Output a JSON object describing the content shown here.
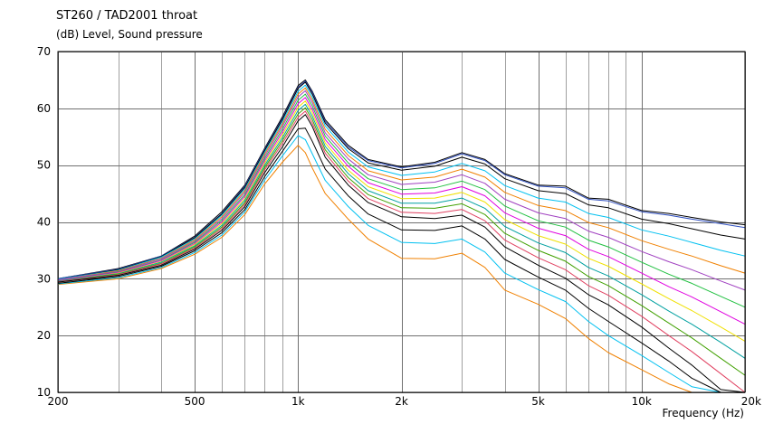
{
  "chart_data": {
    "type": "line",
    "title": "ST260 / TAD2001 throat",
    "ylabel": "(dB)  Level, Sound pressure",
    "xlabel": "Frequency  (Hz)",
    "x_scale": "log",
    "xlim": [
      200,
      20000
    ],
    "ylim": [
      10,
      70
    ],
    "grid": true,
    "x_ticks": [
      200,
      500,
      1000,
      2000,
      5000,
      10000,
      20000
    ],
    "x_tick_labels": [
      "200",
      "500",
      "1k",
      "2k",
      "5k",
      "10k",
      "20k"
    ],
    "y_ticks": [
      10,
      20,
      30,
      40,
      50,
      60,
      70
    ],
    "y_tick_labels": [
      "10",
      "20",
      "30",
      "40",
      "50",
      "60",
      "70"
    ],
    "x": [
      200,
      300,
      400,
      500,
      600,
      700,
      800,
      900,
      1000,
      1050,
      1100,
      1200,
      1400,
      1600,
      2000,
      2500,
      3000,
      3500,
      4000,
      5000,
      6000,
      7000,
      8000,
      10000,
      12000,
      14000,
      17000,
      20000
    ],
    "series": [
      {
        "color": "#000000",
        "values": [
          30.0,
          31.8,
          34.0,
          37.5,
          41.8,
          46.5,
          53.0,
          58.5,
          64.0,
          65.0,
          63.0,
          58.0,
          53.5,
          51.0,
          49.7,
          50.5,
          52.2,
          51.0,
          48.5,
          46.5,
          46.3,
          44.2,
          44.0,
          42.0,
          41.5,
          40.8,
          40.0,
          39.5
        ]
      },
      {
        "color": "#3050c0",
        "values": [
          30.0,
          31.7,
          34.0,
          37.3,
          41.5,
          46.3,
          52.8,
          58.2,
          63.7,
          64.8,
          62.8,
          57.7,
          53.2,
          50.8,
          49.5,
          50.3,
          52.0,
          50.8,
          48.3,
          46.3,
          46.0,
          44.0,
          43.7,
          41.8,
          41.2,
          40.5,
          39.7,
          39.0
        ]
      },
      {
        "color": "#000000",
        "values": [
          29.9,
          31.6,
          33.9,
          37.2,
          41.4,
          46.1,
          52.6,
          58.0,
          63.5,
          64.6,
          62.5,
          57.4,
          52.9,
          50.4,
          49.1,
          49.8,
          51.4,
          50.2,
          47.6,
          45.5,
          45.0,
          43.0,
          42.5,
          40.5,
          39.7,
          38.8,
          37.7,
          37.0
        ]
      },
      {
        "color": "#00c0f0",
        "values": [
          29.9,
          31.5,
          33.8,
          37.0,
          41.2,
          45.8,
          52.3,
          57.6,
          63.0,
          64.1,
          62.0,
          56.9,
          52.3,
          49.7,
          48.2,
          48.8,
          50.3,
          49.0,
          46.4,
          44.2,
          43.5,
          41.5,
          40.8,
          38.6,
          37.5,
          36.4,
          35.0,
          34.0
        ]
      },
      {
        "color": "#f08000",
        "values": [
          29.8,
          31.4,
          33.6,
          36.8,
          40.9,
          45.5,
          52.0,
          57.2,
          62.5,
          63.6,
          61.5,
          56.3,
          51.7,
          49.0,
          47.4,
          47.9,
          49.3,
          47.9,
          45.2,
          42.9,
          42.0,
          39.9,
          39.0,
          36.7,
          35.2,
          34.0,
          32.3,
          31.0
        ]
      },
      {
        "color": "#a040c0",
        "values": [
          29.8,
          31.3,
          33.5,
          36.6,
          40.6,
          45.2,
          51.6,
          56.8,
          62.0,
          63.1,
          61.0,
          55.7,
          51.1,
          48.3,
          46.6,
          47.0,
          48.3,
          46.8,
          44.0,
          41.6,
          40.6,
          38.4,
          37.3,
          34.8,
          33.0,
          31.6,
          29.6,
          28.0
        ]
      },
      {
        "color": "#20c040",
        "values": [
          29.7,
          31.2,
          33.3,
          36.4,
          40.3,
          44.8,
          51.2,
          56.3,
          61.4,
          62.5,
          60.4,
          55.1,
          50.4,
          47.6,
          45.7,
          46.0,
          47.2,
          45.7,
          42.8,
          40.2,
          39.1,
          36.8,
          35.6,
          32.9,
          30.8,
          29.2,
          26.9,
          25.0
        ]
      },
      {
        "color": "#e000e0",
        "values": [
          29.7,
          31.1,
          33.2,
          36.2,
          40.0,
          44.5,
          50.8,
          55.8,
          60.8,
          61.9,
          59.8,
          54.5,
          49.8,
          46.9,
          44.9,
          45.1,
          46.2,
          44.6,
          41.6,
          38.9,
          37.6,
          35.2,
          33.9,
          31.0,
          28.6,
          26.8,
          24.2,
          22.0
        ]
      },
      {
        "color": "#f0e000",
        "values": [
          29.6,
          31.0,
          33.0,
          36.0,
          39.7,
          44.1,
          50.4,
          55.3,
          60.2,
          61.3,
          59.2,
          53.9,
          49.1,
          46.2,
          44.1,
          44.2,
          45.2,
          43.5,
          40.4,
          37.6,
          36.1,
          33.6,
          32.2,
          29.1,
          26.5,
          24.4,
          21.5,
          19.0
        ]
      },
      {
        "color": "#00a0a0",
        "values": [
          29.6,
          30.9,
          32.9,
          35.8,
          39.4,
          43.8,
          50.0,
          54.8,
          59.6,
          60.7,
          58.6,
          53.3,
          48.5,
          45.5,
          43.3,
          43.3,
          44.2,
          42.4,
          39.2,
          36.3,
          34.6,
          32.0,
          30.5,
          27.2,
          24.3,
          22.0,
          18.8,
          16.0
        ]
      },
      {
        "color": "#40a000",
        "values": [
          29.5,
          30.8,
          32.7,
          35.6,
          39.1,
          43.4,
          49.6,
          54.3,
          59.0,
          60.1,
          58.0,
          52.7,
          47.8,
          44.8,
          42.5,
          42.4,
          43.2,
          41.3,
          38.0,
          35.0,
          33.1,
          30.4,
          28.8,
          25.3,
          22.2,
          19.6,
          16.0,
          13.0
        ]
      },
      {
        "color": "#e04060",
        "values": [
          29.5,
          30.7,
          32.6,
          35.4,
          38.8,
          43.1,
          49.2,
          53.8,
          58.4,
          59.5,
          57.4,
          52.1,
          47.2,
          44.1,
          41.7,
          41.5,
          42.2,
          40.2,
          36.8,
          33.7,
          31.6,
          28.8,
          27.1,
          23.4,
          20.0,
          17.2,
          13.3,
          10.0
        ]
      },
      {
        "color": "#000000",
        "values": [
          29.4,
          30.6,
          32.4,
          35.2,
          38.5,
          42.7,
          48.7,
          53.2,
          57.8,
          58.9,
          56.8,
          51.4,
          46.5,
          43.4,
          40.9,
          40.6,
          41.2,
          39.1,
          35.6,
          32.4,
          30.1,
          27.2,
          25.4,
          21.5,
          17.8,
          14.8,
          10.5,
          10.0
        ]
      },
      {
        "color": "#f08000",
        "values": [
          29.0,
          30.0,
          31.8,
          34.3,
          37.3,
          41.3,
          46.7,
          50.5,
          53.5,
          52.2,
          49.5,
          45.0,
          40.5,
          37.0,
          33.6,
          33.5,
          34.5,
          32.0,
          28.0,
          25.5,
          23.0,
          19.5,
          17.0,
          14.0,
          11.5,
          10.0,
          10.0,
          10.0
        ]
      },
      {
        "color": "#00c0f0",
        "values": [
          29.1,
          30.2,
          32.0,
          34.6,
          37.7,
          41.8,
          47.4,
          51.6,
          55.2,
          54.5,
          52.0,
          47.3,
          42.7,
          39.4,
          36.4,
          36.2,
          37.0,
          34.7,
          31.0,
          28.1,
          26.0,
          22.5,
          20.0,
          16.5,
          13.5,
          11.0,
          10.0,
          10.0
        ]
      },
      {
        "color": "#000000",
        "values": [
          29.2,
          30.4,
          32.2,
          34.9,
          38.1,
          42.2,
          48.0,
          52.4,
          56.4,
          56.5,
          54.2,
          49.3,
          44.6,
          41.4,
          38.6,
          38.5,
          39.3,
          37.0,
          33.4,
          30.3,
          28.0,
          24.8,
          22.5,
          18.7,
          15.5,
          12.5,
          10.0,
          10.0
        ]
      }
    ]
  }
}
